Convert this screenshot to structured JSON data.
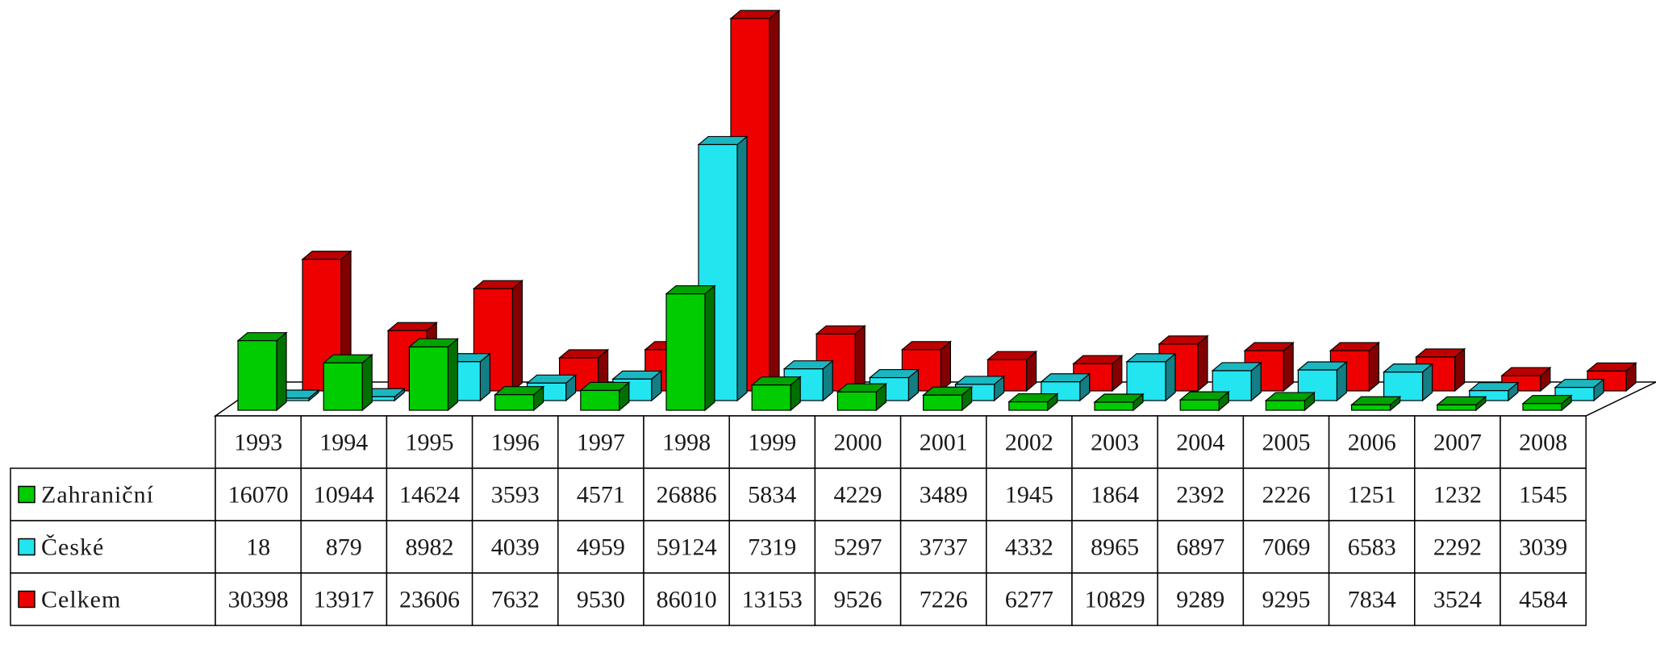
{
  "chart_data": {
    "type": "bar",
    "title": "",
    "xlabel": "",
    "ylabel": "",
    "grid": false,
    "legend": "data-table",
    "categories": [
      "1993",
      "1994",
      "1995",
      "1996",
      "1997",
      "1998",
      "1999",
      "2000",
      "2001",
      "2002",
      "2003",
      "2004",
      "2005",
      "2006",
      "2007",
      "2008"
    ],
    "series": [
      {
        "name": "Zahraniční",
        "color": "#00cc00",
        "values": [
          16070,
          10944,
          14624,
          3593,
          4571,
          26886,
          5834,
          4229,
          3489,
          1945,
          1864,
          2392,
          2226,
          1251,
          1232,
          1545
        ]
      },
      {
        "name": "České",
        "color": "#22e5f0",
        "values": [
          18,
          879,
          8982,
          4039,
          4959,
          59124,
          7319,
          5297,
          3737,
          4332,
          8965,
          6897,
          7069,
          6583,
          2292,
          3039
        ]
      },
      {
        "name": "Celkem",
        "color": "#ee0000",
        "values": [
          30398,
          13917,
          23606,
          7632,
          9530,
          86010,
          13153,
          9526,
          7226,
          6277,
          10829,
          9289,
          9295,
          7834,
          3524,
          4584
        ]
      }
    ],
    "table": {
      "header": [
        "1993",
        "1994",
        "1995",
        "1996",
        "1997",
        "1998",
        "1999",
        "2000",
        "2001",
        "2002",
        "2003",
        "2004",
        "2005",
        "2006",
        "2007",
        "2008"
      ],
      "rows": [
        {
          "label": "Zahraniční",
          "cells": [
            "16070",
            "10944",
            "14624",
            "3593",
            "4571",
            "26886",
            "5834",
            "4229",
            "3489",
            "1945",
            "1864",
            "2392",
            "2226",
            "1251",
            "1232",
            "1545"
          ]
        },
        {
          "label": "České",
          "cells": [
            "18",
            "879",
            "8982",
            "4039",
            "4959",
            "59124",
            "7319",
            "5297",
            "3737",
            "4332",
            "8965",
            "6897",
            "7069",
            "6583",
            "2292",
            "3039"
          ]
        },
        {
          "label": "Celkem",
          "cells": [
            "30398",
            "13917",
            "23606",
            "7632",
            "9530",
            "86010",
            "13153",
            "9526",
            "7226",
            "6277",
            "10829",
            "9289",
            "9295",
            "7834",
            "3524",
            "4584"
          ]
        }
      ]
    }
  }
}
